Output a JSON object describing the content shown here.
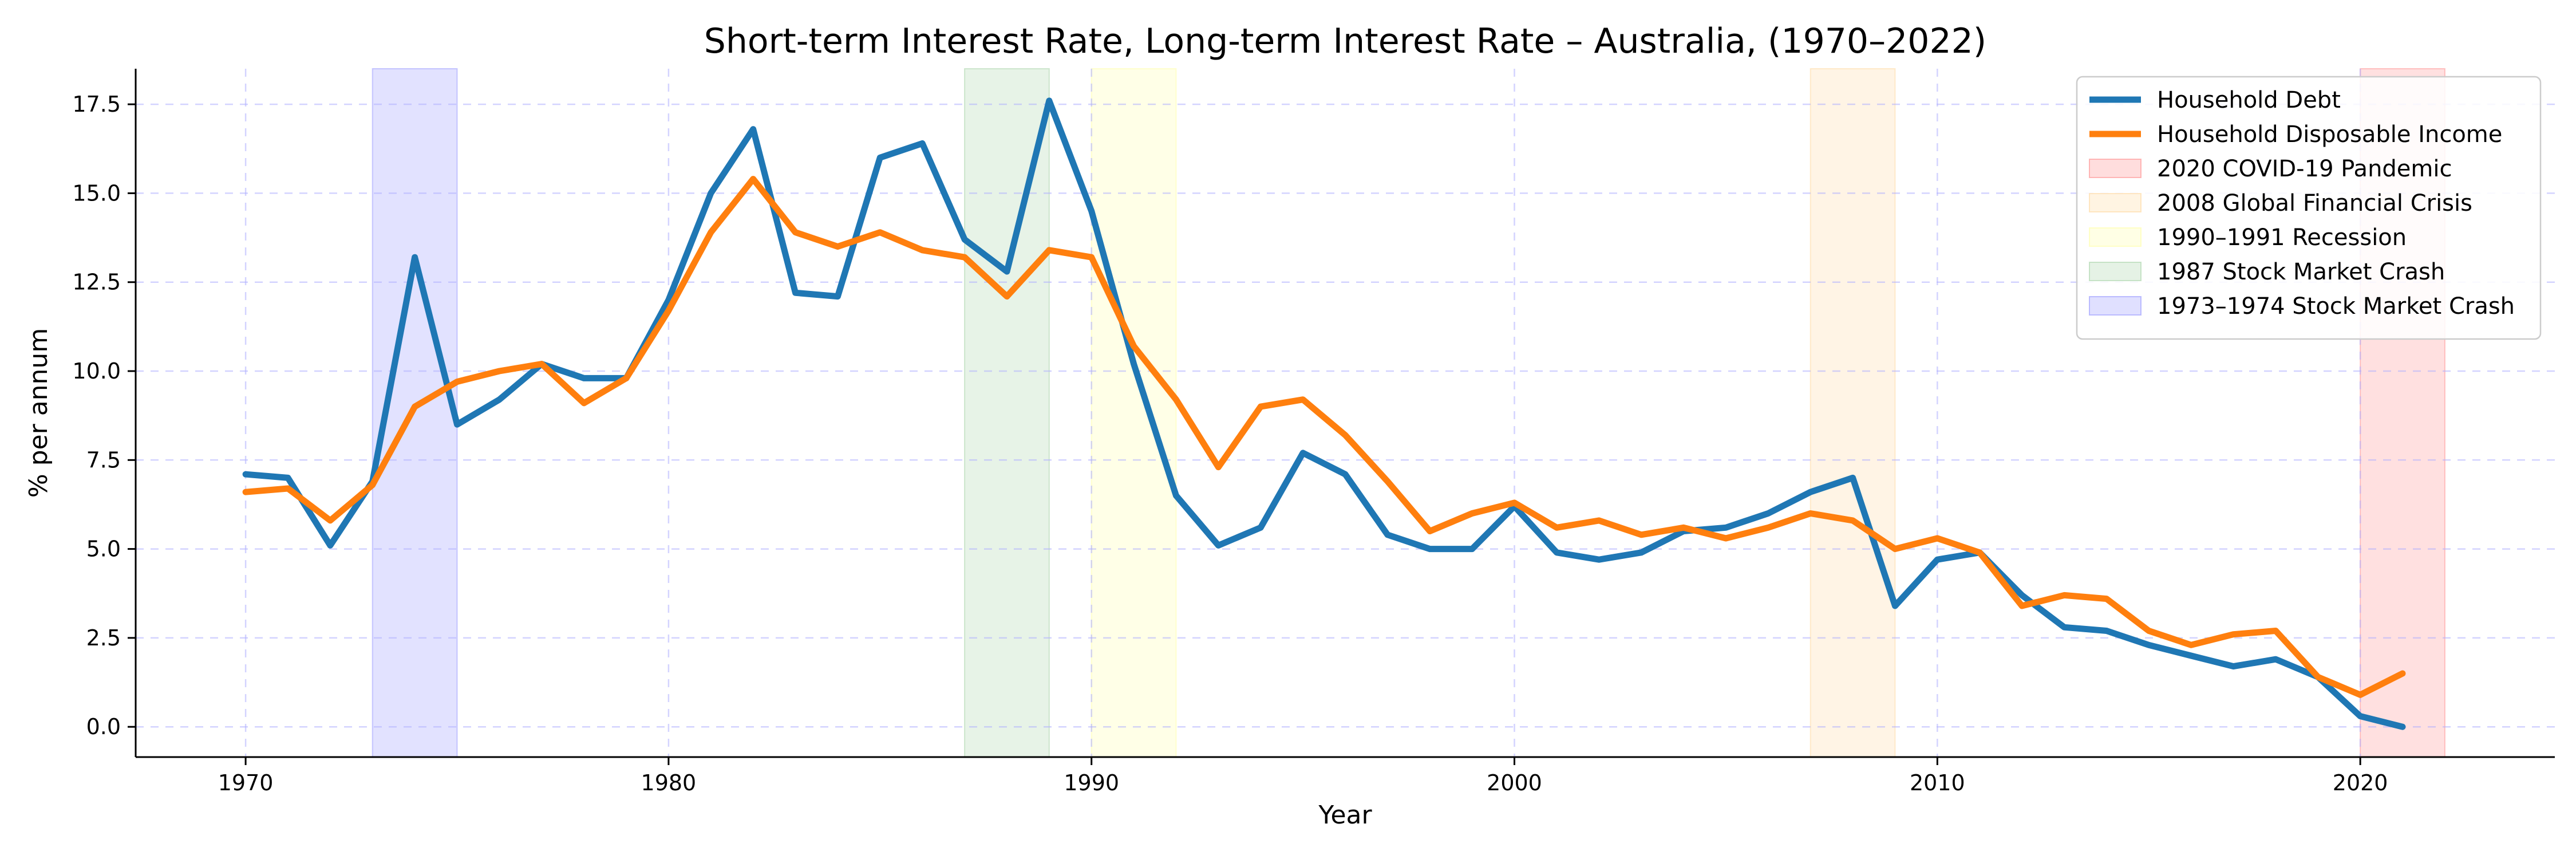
{
  "chart_data": {
    "type": "line",
    "title": "Short-term Interest Rate, Long-term Interest Rate – Australia, (1970–2022)",
    "xlabel": "Year",
    "ylabel": "% per annum",
    "xlim": [
      1967.4,
      2024.6
    ],
    "ylim": [
      -0.85,
      18.5
    ],
    "xticks": [
      1970,
      1980,
      1990,
      2000,
      2010,
      2020
    ],
    "yticks": [
      0.0,
      2.5,
      5.0,
      7.5,
      10.0,
      12.5,
      15.0,
      17.5
    ],
    "ytick_labels": [
      "0.0",
      "2.5",
      "5.0",
      "7.5",
      "10.0",
      "12.5",
      "15.0",
      "17.5"
    ],
    "grid": true,
    "legend_position": "top-right",
    "x": [
      1970,
      1971,
      1972,
      1973,
      1974,
      1975,
      1976,
      1977,
      1978,
      1979,
      1980,
      1981,
      1982,
      1983,
      1984,
      1985,
      1986,
      1987,
      1988,
      1989,
      1990,
      1991,
      1992,
      1993,
      1994,
      1995,
      1996,
      1997,
      1998,
      1999,
      2000,
      2001,
      2002,
      2003,
      2004,
      2005,
      2006,
      2007,
      2008,
      2009,
      2010,
      2011,
      2012,
      2013,
      2014,
      2015,
      2016,
      2017,
      2018,
      2019,
      2020,
      2021
    ],
    "series": [
      {
        "name": "Household Debt",
        "color": "#1f77b4",
        "values": [
          7.1,
          7.0,
          5.1,
          6.9,
          13.2,
          8.5,
          9.2,
          10.2,
          9.8,
          9.8,
          12.0,
          15.0,
          16.8,
          12.2,
          12.1,
          16.0,
          16.4,
          13.7,
          12.8,
          17.6,
          14.5,
          10.2,
          6.5,
          5.1,
          5.6,
          7.7,
          7.1,
          5.4,
          5.0,
          5.0,
          6.2,
          4.9,
          4.7,
          4.9,
          5.5,
          5.6,
          6.0,
          6.6,
          7.0,
          3.4,
          4.7,
          4.9,
          3.7,
          2.8,
          2.7,
          2.3,
          2.0,
          1.7,
          1.9,
          1.4,
          0.3,
          0.0
        ]
      },
      {
        "name": "Household Disposable Income",
        "color": "#ff7f0e",
        "values": [
          6.6,
          6.7,
          5.8,
          6.8,
          9.0,
          9.7,
          10.0,
          10.2,
          9.1,
          9.8,
          11.7,
          13.9,
          15.4,
          13.9,
          13.5,
          13.9,
          13.4,
          13.2,
          12.1,
          13.4,
          13.2,
          10.7,
          9.2,
          7.3,
          9.0,
          9.2,
          8.2,
          6.9,
          5.5,
          6.0,
          6.3,
          5.6,
          5.8,
          5.4,
          5.6,
          5.3,
          5.6,
          6.0,
          5.8,
          5.0,
          5.3,
          4.9,
          3.4,
          3.7,
          3.6,
          2.7,
          2.3,
          2.6,
          2.7,
          1.4,
          0.9,
          1.5
        ]
      }
    ],
    "shaded_regions": [
      {
        "name": "2020 COVID-19 Pandemic",
        "x0": 2020,
        "x1": 2022,
        "color": "#ff9090"
      },
      {
        "name": "2008 Global Financial Crisis",
        "x0": 2007,
        "x1": 2009,
        "color": "#ffd9a0"
      },
      {
        "name": "1990–1991 Recession",
        "x0": 1990,
        "x1": 1992,
        "color": "#ffffa8"
      },
      {
        "name": "1987 Stock Market Crash",
        "x0": 1987,
        "x1": 1989,
        "color": "#a8d4a8"
      },
      {
        "name": "1973–1974 Stock Market Crash",
        "x0": 1973,
        "x1": 1975,
        "color": "#9898ff"
      }
    ]
  }
}
